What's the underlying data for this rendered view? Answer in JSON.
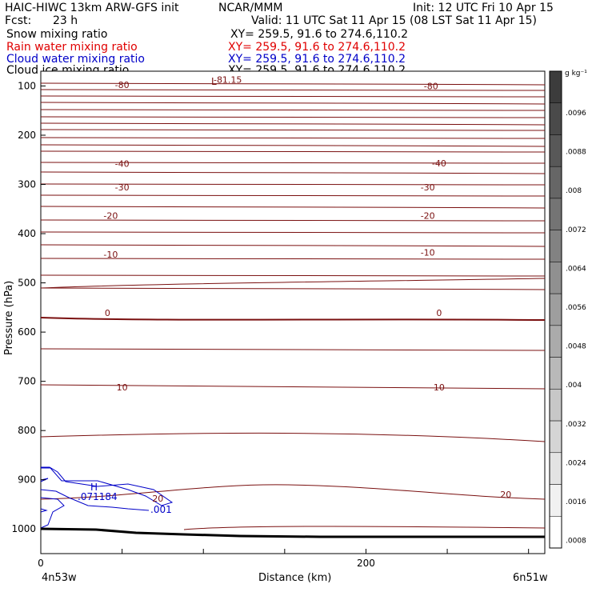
{
  "header": {
    "model": "HAIC-HIWC 13km ARW-GFS init",
    "org": "NCAR/MMM",
    "init": "Init: 12 UTC Fri 10 Apr 15",
    "fcst_label": "Fcst:",
    "fcst_value": "23 h",
    "valid": "Valid: 11 UTC Sat 11 Apr 15 (08 LST Sat 11 Apr 15)"
  },
  "fields": [
    {
      "name": "Snow mixing ratio",
      "xy": "XY= 259.5, 91.6 to 274.6,110.2",
      "color": "#000000"
    },
    {
      "name": "Rain water mixing ratio",
      "xy": "XY= 259.5, 91.6 to 274.6,110.2",
      "color": "#e00000"
    },
    {
      "name": "Cloud water mixing ratio",
      "xy": "XY= 259.5, 91.6 to 274.6,110.2",
      "color": "#0000c8"
    },
    {
      "name": "Cloud ice mixing ratio",
      "xy": "XY= 259.5, 91.6 to 274.6,110.2",
      "color": "#000000"
    }
  ],
  "colorbar": {
    "unit": "g kg⁻¹",
    "ticks": [
      ".0096",
      ".0088",
      ".008",
      ".0072",
      ".0064",
      ".0056",
      ".0048",
      ".004",
      ".0032",
      ".0024",
      ".0016",
      ".0008"
    ]
  },
  "chart_data": {
    "type": "contour",
    "xlabel": "Distance (km)",
    "ylabel": "Pressure (hPa)",
    "xlim": [
      0,
      310
    ],
    "ylim": [
      1050,
      70
    ],
    "x_ticks": [
      "0",
      "200"
    ],
    "y_ticks": [
      "100",
      "200",
      "300",
      "400",
      "500",
      "600",
      "700",
      "800",
      "900",
      "1000"
    ],
    "endpoint_left": "4n53w",
    "endpoint_right": "6n51w",
    "temperature_labels": [
      {
        "text": "-80",
        "x": 50,
        "p": 98
      },
      {
        "text": "-80",
        "x": 240,
        "p": 100
      },
      {
        "text": "-40",
        "x": 50,
        "p": 258
      },
      {
        "text": "-40",
        "x": 245,
        "p": 257
      },
      {
        "text": "-30",
        "x": 50,
        "p": 306
      },
      {
        "text": "-30",
        "x": 238,
        "p": 306
      },
      {
        "text": "-20",
        "x": 43,
        "p": 363
      },
      {
        "text": "-20",
        "x": 238,
        "p": 363
      },
      {
        "text": "-10",
        "x": 43,
        "p": 442
      },
      {
        "text": "-10",
        "x": 238,
        "p": 438
      },
      {
        "text": "0",
        "x": 41,
        "p": 561
      },
      {
        "text": "0",
        "x": 245,
        "p": 561
      },
      {
        "text": "10",
        "x": 50,
        "p": 712
      },
      {
        "text": "10",
        "x": 245,
        "p": 712
      },
      {
        "text": "20",
        "x": 72,
        "p": 938
      },
      {
        "text": "20",
        "x": 286,
        "p": 930
      },
      {
        "text": "-81.15",
        "x": 115,
        "p": 87
      }
    ],
    "low_marker": {
      "text": "L",
      "x": 108,
      "p": 70
    },
    "cloud_water": {
      "high_text": "H",
      "high_x": 32,
      "high_p": 910,
      "max_label": ".071184",
      "contour_label": ".001"
    }
  }
}
